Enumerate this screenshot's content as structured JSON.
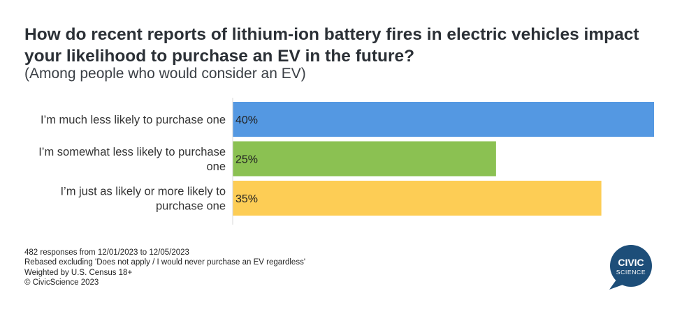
{
  "title": "How do recent reports of lithium-ion battery fires in electric vehicles impact your likelihood to purchase an EV in the future?",
  "subtitle": "(Among people who would consider an EV)",
  "chart_data": {
    "type": "bar",
    "orientation": "horizontal",
    "title": "How do recent reports of lithium-ion battery fires in electric vehicles impact your likelihood to purchase an EV in the future?",
    "subtitle": "(Among people who would consider an EV)",
    "categories": [
      "I’m much less likely to purchase one",
      "I’m somewhat less likely to purchase one",
      "I’m just as likely or more likely to purchase one"
    ],
    "category_lines": [
      [
        "I’m much less likely to purchase one"
      ],
      [
        "I’m somewhat less likely to purchase",
        "one"
      ],
      [
        "I’m just as likely or more likely to",
        "purchase one"
      ]
    ],
    "values": [
      40,
      25,
      35
    ],
    "labels": [
      "40%",
      "25%",
      "35%"
    ],
    "colors": [
      "#5498e2",
      "#8bc152",
      "#fdcd55"
    ],
    "xlim": [
      0,
      40
    ],
    "unit": "%",
    "grid": false,
    "legend": "none",
    "xlabel": "",
    "ylabel": ""
  },
  "footer": {
    "lines": [
      "482 responses from 12/01/2023 to 12/05/2023",
      "Rebased excluding 'Does not apply / I would never purchase an EV regardless'",
      "Weighted by U.S. Census 18+",
      "© CivicScience 2023"
    ]
  },
  "logo": {
    "line1": "CIVIC",
    "line2": "SCIENCE",
    "color": "#1d4e79"
  }
}
